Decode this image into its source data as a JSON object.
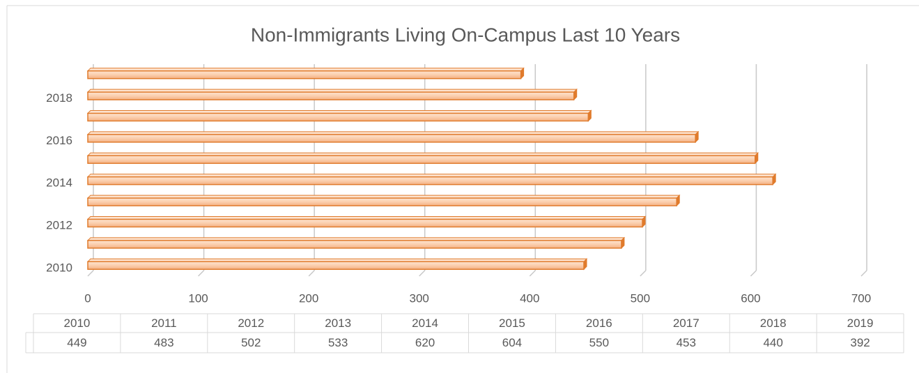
{
  "chart_data": {
    "type": "bar",
    "orientation": "horizontal",
    "title": "Non-Immigrants Living On-Campus Last 10 Years",
    "categories": [
      "2010",
      "2011",
      "2012",
      "2013",
      "2014",
      "2015",
      "2016",
      "2017",
      "2018",
      "2019"
    ],
    "values": [
      449,
      483,
      502,
      533,
      620,
      604,
      550,
      453,
      440,
      392
    ],
    "color": "#f4b183",
    "edge_color": "#e07b2c",
    "xlim": [
      0,
      700
    ],
    "xticks": [
      0,
      100,
      200,
      300,
      400,
      500,
      600,
      700
    ],
    "grid": true,
    "data_table": true
  }
}
